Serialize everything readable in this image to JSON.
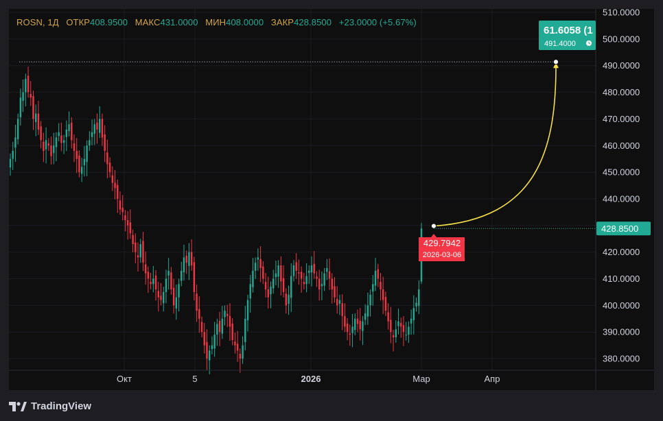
{
  "legend": {
    "symbol": "ROSN, 1Д",
    "open_label": "ОТКР",
    "open_value": "408.9500",
    "high_label": "МАКС",
    "high_value": "431.0000",
    "low_label": "МИН",
    "low_value": "408.0000",
    "close_label": "ЗАКР",
    "close_value": "428.8500",
    "change": "+23.0000 (+5.67%)"
  },
  "last_price_label": "428.8500",
  "target_label": {
    "value": "61.6058 (1",
    "sub": "491.4000",
    "sub_icon": "clock-icon"
  },
  "marker_label": {
    "value": "429.7942",
    "date": "2026-03-06"
  },
  "brand": "TradingView",
  "colors": {
    "up": "#22ab94",
    "down": "#f23645",
    "accent": "#2962ff",
    "arrow": "#f5e04a"
  },
  "chart_data": {
    "type": "candlestick",
    "symbol": "ROSN",
    "timeframe": "1Д",
    "y_ticks": [
      "510.0000",
      "500.0000",
      "490.0000",
      "480.0000",
      "470.0000",
      "460.0000",
      "450.0000",
      "440.0000",
      "430.0000",
      "420.0000",
      "410.0000",
      "400.0000",
      "390.0000",
      "380.0000"
    ],
    "x_ticks": [
      "Окт",
      "5",
      "2026",
      "Мар",
      "Апр"
    ],
    "ylim": [
      377,
      512
    ],
    "last_close": 428.85,
    "projection": {
      "from": 429.7942,
      "from_date": "2026-03-06",
      "to": 491.4,
      "change": "61.6058"
    },
    "closes": [
      455,
      458,
      463,
      470,
      478,
      480,
      485,
      480,
      478,
      470,
      472,
      466,
      462,
      458,
      462,
      460,
      456,
      460,
      463,
      465,
      461,
      462,
      466,
      468,
      462,
      458,
      455,
      450,
      452,
      455,
      460,
      462,
      465,
      468,
      466,
      470,
      463,
      458,
      453,
      450,
      446,
      444,
      440,
      436,
      435,
      432,
      430,
      427,
      423,
      420,
      418,
      423,
      416,
      412,
      410,
      408,
      410,
      406,
      403,
      402,
      405,
      410,
      413,
      406,
      400,
      403,
      408,
      413,
      418,
      416,
      420,
      415,
      405,
      398,
      395,
      390,
      385,
      380,
      383,
      385,
      389,
      393,
      390,
      395,
      398,
      396,
      392,
      387,
      385,
      383,
      380,
      385,
      395,
      402,
      408,
      413,
      416,
      418,
      414,
      410,
      406,
      403,
      407,
      410,
      412,
      415,
      409,
      405,
      400,
      404,
      411,
      415,
      413,
      412,
      410,
      408,
      411,
      413,
      415,
      412,
      410,
      406,
      408,
      412,
      414,
      410,
      406,
      403,
      400,
      402,
      396,
      392,
      390,
      389,
      392,
      395,
      393,
      391,
      394,
      397,
      400,
      404,
      408,
      413,
      410,
      406,
      402,
      398,
      394,
      390,
      388,
      391,
      394,
      392,
      390,
      389,
      392,
      395,
      399,
      401,
      406,
      428.85
    ]
  }
}
